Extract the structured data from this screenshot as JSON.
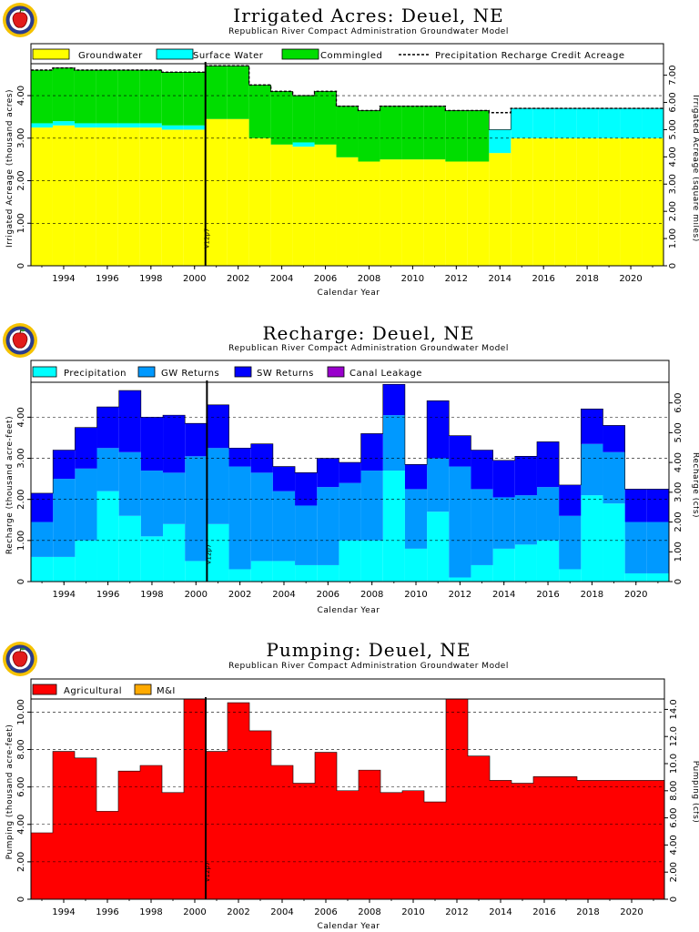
{
  "chart_data": [
    {
      "type": "area",
      "title": "Irrigated Acres: Deuel, NE",
      "subtitle": "Republican River Compact Administration Groundwater Model",
      "xlabel": "Calendar Year",
      "ylabel": "Irrigated Acreage (thousand acres)",
      "ylabel_right": "Irrigated Acreage (square miles)",
      "xlim": [
        1992.5,
        2021.5
      ],
      "ylim": [
        0,
        4.75
      ],
      "x_ticks": [
        "1994",
        "1996",
        "1998",
        "2000",
        "2002",
        "2004",
        "2006",
        "2008",
        "2010",
        "2012",
        "2014",
        "2016",
        "2018",
        "2020"
      ],
      "y_ticks": [
        "0",
        "1.00",
        "2.00",
        "3.00",
        "4.00"
      ],
      "y_ticks_right": [
        "0",
        "1.00",
        "2.00",
        "3.00",
        "4.00",
        "5.00",
        "6.00",
        "7.00"
      ],
      "right_axis_factor": 1.5625,
      "vline": {
        "x": 2000.5,
        "label": "V12p7"
      },
      "grid": true,
      "legend_position": "top",
      "categories": [
        1993,
        1994,
        1995,
        1996,
        1997,
        1998,
        1999,
        2000,
        2001,
        2002,
        2003,
        2004,
        2005,
        2006,
        2007,
        2008,
        2009,
        2010,
        2011,
        2012,
        2013,
        2014,
        2015,
        2016,
        2017,
        2018,
        2019,
        2020,
        2021
      ],
      "series": [
        {
          "name": "Groundwater",
          "color": "#ffff00",
          "values": [
            3.25,
            3.3,
            3.25,
            3.25,
            3.25,
            3.25,
            3.2,
            3.2,
            3.45,
            3.45,
            3.0,
            2.85,
            2.8,
            2.85,
            2.55,
            2.45,
            2.5,
            2.5,
            2.5,
            2.45,
            2.45,
            2.65,
            3.0,
            3.0,
            3.0,
            3.0,
            3.0,
            3.0,
            3.0
          ]
        },
        {
          "name": "Surface Water",
          "color": "#00ffff",
          "values": [
            0.1,
            0.1,
            0.1,
            0.1,
            0.1,
            0.1,
            0.1,
            0.1,
            0,
            0,
            0,
            0,
            0.1,
            0,
            0,
            0,
            0,
            0,
            0,
            0,
            0,
            0.55,
            0.7,
            0.7,
            0.7,
            0.7,
            0.7,
            0.7,
            0.7
          ]
        },
        {
          "name": "Commingled",
          "color": "#00dd00",
          "values": [
            1.25,
            1.25,
            1.25,
            1.25,
            1.25,
            1.25,
            1.25,
            1.25,
            1.25,
            1.25,
            1.25,
            1.25,
            1.1,
            1.25,
            1.2,
            1.2,
            1.25,
            1.25,
            1.25,
            1.2,
            1.2,
            0,
            0,
            0,
            0,
            0,
            0,
            0,
            0
          ]
        }
      ],
      "dashed_series": {
        "name": "Precipitation Recharge Credit Acreage",
        "values": [
          4.6,
          4.65,
          4.6,
          4.6,
          4.6,
          4.6,
          4.55,
          4.55,
          4.7,
          4.7,
          4.25,
          4.1,
          4.0,
          4.1,
          3.75,
          3.65,
          3.75,
          3.75,
          3.75,
          3.65,
          3.65,
          3.6,
          3.7,
          3.7,
          3.7,
          3.7,
          3.7,
          3.7,
          3.7
        ]
      }
    },
    {
      "type": "area",
      "title": "Recharge: Deuel, NE",
      "subtitle": "Republican River Compact Administration Groundwater Model",
      "xlabel": "Calendar Year",
      "ylabel": "Recharge (thousand acre-feet)",
      "ylabel_right": "Recharge (cfs)",
      "xlim": [
        1992.5,
        2021.5
      ],
      "ylim": [
        0,
        4.85
      ],
      "x_ticks": [
        "1994",
        "1996",
        "1998",
        "2000",
        "2002",
        "2004",
        "2006",
        "2008",
        "2010",
        "2012",
        "2014",
        "2016",
        "2018",
        "2020"
      ],
      "y_ticks": [
        "0",
        "1.00",
        "2.00",
        "3.00",
        "4.00"
      ],
      "y_ticks_right": [
        "0",
        "1.00",
        "2.00",
        "3.00",
        "4.00",
        "5.00",
        "6.00"
      ],
      "right_axis_factor": 1.38,
      "vline": {
        "x": 2000.5,
        "label": "V12p7"
      },
      "grid": true,
      "legend_position": "top",
      "categories": [
        1993,
        1994,
        1995,
        1996,
        1997,
        1998,
        1999,
        2000,
        2001,
        2002,
        2003,
        2004,
        2005,
        2006,
        2007,
        2008,
        2009,
        2010,
        2011,
        2012,
        2013,
        2014,
        2015,
        2016,
        2017,
        2018,
        2019,
        2020,
        2021
      ],
      "series": [
        {
          "name": "Precipitation",
          "color": "#00ffff",
          "values": [
            0.6,
            0.6,
            1.0,
            2.2,
            1.6,
            1.1,
            1.4,
            0.5,
            1.4,
            0.3,
            0.5,
            0.5,
            0.4,
            0.4,
            1.0,
            1.0,
            2.7,
            0.8,
            1.7,
            0.1,
            0.4,
            0.8,
            0.9,
            1.0,
            0.3,
            2.1,
            1.9,
            0.2,
            0.2
          ]
        },
        {
          "name": "GW Returns",
          "color": "#0099ff",
          "values": [
            0.85,
            1.9,
            1.75,
            1.05,
            1.55,
            1.6,
            1.25,
            2.55,
            1.85,
            2.5,
            2.15,
            1.7,
            1.45,
            1.9,
            1.4,
            1.7,
            1.35,
            1.45,
            1.3,
            2.7,
            1.85,
            1.25,
            1.2,
            1.3,
            1.3,
            1.25,
            1.25,
            1.25,
            1.25
          ]
        },
        {
          "name": "SW Returns",
          "color": "#0000ff",
          "values": [
            0.7,
            0.7,
            1.0,
            1.0,
            1.5,
            1.3,
            1.4,
            0.8,
            1.05,
            0.45,
            0.7,
            0.6,
            0.8,
            0.7,
            0.5,
            0.9,
            0.75,
            0.6,
            1.4,
            0.75,
            0.95,
            0.9,
            0.95,
            1.1,
            0.75,
            0.85,
            0.65,
            0.8,
            0.8
          ]
        },
        {
          "name": "Canal Leakage",
          "color": "#9900cc",
          "values": [
            0,
            0,
            0,
            0,
            0,
            0,
            0,
            0,
            0,
            0,
            0,
            0,
            0,
            0,
            0,
            0,
            0,
            0,
            0,
            0,
            0,
            0,
            0,
            0,
            0,
            0,
            0,
            0,
            0
          ]
        }
      ]
    },
    {
      "type": "area",
      "title": "Pumping: Deuel, NE",
      "subtitle": "Republican River Compact Administration Groundwater Model",
      "xlabel": "Calendar Year",
      "ylabel": "Pumping (thousand acre-feet)",
      "ylabel_right": "Pumping (cfs)",
      "xlim": [
        1992.5,
        2021.5
      ],
      "ylim": [
        0,
        10.7
      ],
      "x_ticks": [
        "1994",
        "1996",
        "1998",
        "2000",
        "2002",
        "2004",
        "2006",
        "2008",
        "2010",
        "2012",
        "2014",
        "2016",
        "2018",
        "2020"
      ],
      "y_ticks": [
        "0",
        "2.00",
        "4.00",
        "6.00",
        "8.00",
        "10.00"
      ],
      "y_ticks_right": [
        "0",
        "2.00",
        "4.00",
        "6.00",
        "8.00",
        "10.0",
        "12.0",
        "14.0"
      ],
      "right_axis_factor": 1.38,
      "vline": {
        "x": 2000.5,
        "label": "V12p7"
      },
      "grid": true,
      "legend_position": "top",
      "categories": [
        1993,
        1994,
        1995,
        1996,
        1997,
        1998,
        1999,
        2000,
        2001,
        2002,
        2003,
        2004,
        2005,
        2006,
        2007,
        2008,
        2009,
        2010,
        2011,
        2012,
        2013,
        2014,
        2015,
        2016,
        2017,
        2018,
        2019,
        2020,
        2021
      ],
      "series": [
        {
          "name": "Agricultural",
          "color": "#ff0000",
          "values": [
            3.55,
            7.9,
            7.55,
            4.7,
            6.85,
            7.15,
            5.7,
            10.7,
            7.9,
            10.5,
            9.0,
            7.15,
            6.2,
            7.85,
            5.8,
            6.9,
            5.7,
            5.8,
            5.2,
            10.7,
            7.65,
            6.35,
            6.2,
            6.55,
            6.55,
            6.35,
            6.35,
            6.35,
            6.35
          ]
        },
        {
          "name": "M&I",
          "color": "#ffaa00",
          "values": [
            0,
            0,
            0,
            0,
            0,
            0,
            0,
            0,
            0,
            0,
            0,
            0,
            0,
            0,
            0,
            0,
            0,
            0,
            0,
            0,
            0,
            0,
            0,
            0,
            0,
            0,
            0,
            0,
            0
          ]
        }
      ]
    }
  ]
}
